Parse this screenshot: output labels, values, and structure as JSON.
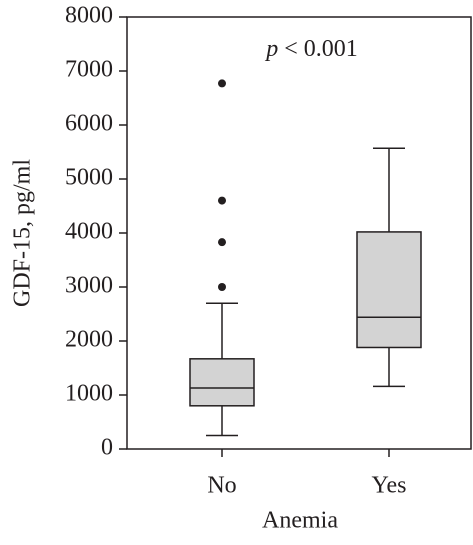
{
  "chart_data": {
    "type": "box",
    "ylabel": "GDF-15, pg/ml",
    "xlabel": "Anemia",
    "annotation": [
      "p",
      "< 0.001"
    ],
    "categories": [
      "No",
      "Yes"
    ],
    "boxes": [
      {
        "whislo": 250,
        "q1": 800,
        "med": 1130,
        "q3": 1670,
        "whishi": 2700,
        "fliers": [
          3000,
          3830,
          4600,
          6770
        ]
      },
      {
        "whislo": 1160,
        "q1": 1880,
        "med": 2440,
        "q3": 4020,
        "whishi": 5570,
        "fliers": []
      }
    ],
    "color": "#d3d3d3",
    "ylim": [
      0,
      8000
    ],
    "yticks": [
      0,
      1000,
      2000,
      3000,
      4000,
      5000,
      6000,
      7000,
      8000
    ]
  }
}
